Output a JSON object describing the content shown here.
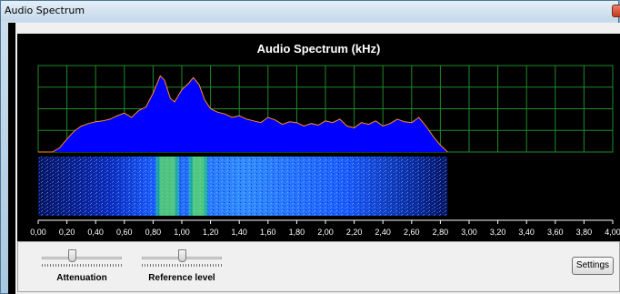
{
  "window": {
    "title": "Audio Spectrum"
  },
  "spectrum": {
    "title": "Audio Spectrum (kHz)",
    "colors": {
      "background": "#000000",
      "grid": "#1f8b2a",
      "fill": "#0000ff",
      "outline": "#ff8c1a",
      "axis_text": "#ffffff"
    }
  },
  "chart_data": {
    "type": "area",
    "title": "Audio Spectrum (kHz)",
    "xlabel": "",
    "ylabel": "",
    "xlim": [
      0,
      4.0
    ],
    "ylim": [
      0,
      1.0
    ],
    "grid": true,
    "x_ticks": [
      "0,00",
      "0,20",
      "0,40",
      "0,60",
      "0,80",
      "1,00",
      "1,20",
      "1,40",
      "1,60",
      "1,80",
      "2,00",
      "2,20",
      "2,40",
      "2,60",
      "2,80",
      "3,00",
      "3,20",
      "3,40",
      "3,60",
      "3,80",
      "4,00"
    ],
    "x": [
      0.0,
      0.1,
      0.15,
      0.2,
      0.25,
      0.3,
      0.35,
      0.4,
      0.45,
      0.5,
      0.55,
      0.6,
      0.65,
      0.7,
      0.75,
      0.8,
      0.85,
      0.88,
      0.92,
      0.95,
      1.0,
      1.05,
      1.08,
      1.12,
      1.16,
      1.2,
      1.25,
      1.3,
      1.35,
      1.4,
      1.45,
      1.5,
      1.55,
      1.6,
      1.65,
      1.7,
      1.75,
      1.8,
      1.85,
      1.9,
      1.95,
      2.0,
      2.05,
      2.1,
      2.15,
      2.2,
      2.25,
      2.3,
      2.35,
      2.4,
      2.45,
      2.5,
      2.55,
      2.6,
      2.65,
      2.7,
      2.75,
      2.8,
      2.85
    ],
    "values": [
      0.0,
      0.0,
      0.05,
      0.15,
      0.24,
      0.3,
      0.33,
      0.35,
      0.36,
      0.38,
      0.42,
      0.45,
      0.4,
      0.48,
      0.52,
      0.68,
      0.88,
      0.83,
      0.62,
      0.58,
      0.72,
      0.8,
      0.86,
      0.78,
      0.6,
      0.5,
      0.46,
      0.44,
      0.4,
      0.42,
      0.38,
      0.36,
      0.34,
      0.4,
      0.37,
      0.32,
      0.35,
      0.34,
      0.3,
      0.33,
      0.31,
      0.36,
      0.34,
      0.38,
      0.3,
      0.28,
      0.34,
      0.32,
      0.36,
      0.3,
      0.33,
      0.38,
      0.35,
      0.34,
      0.4,
      0.3,
      0.18,
      0.08,
      0.0
    ],
    "waterfall": {
      "x_start": 0.0,
      "x_end": 2.85,
      "hot_bands": [
        [
          0.82,
          0.98
        ],
        [
          1.05,
          1.18
        ]
      ]
    }
  },
  "controls": {
    "attenuation": {
      "label": "Attenuation",
      "value": 0.38
    },
    "reference_level": {
      "label": "Reference level",
      "value": 0.5
    },
    "settings_label": "Settings"
  }
}
